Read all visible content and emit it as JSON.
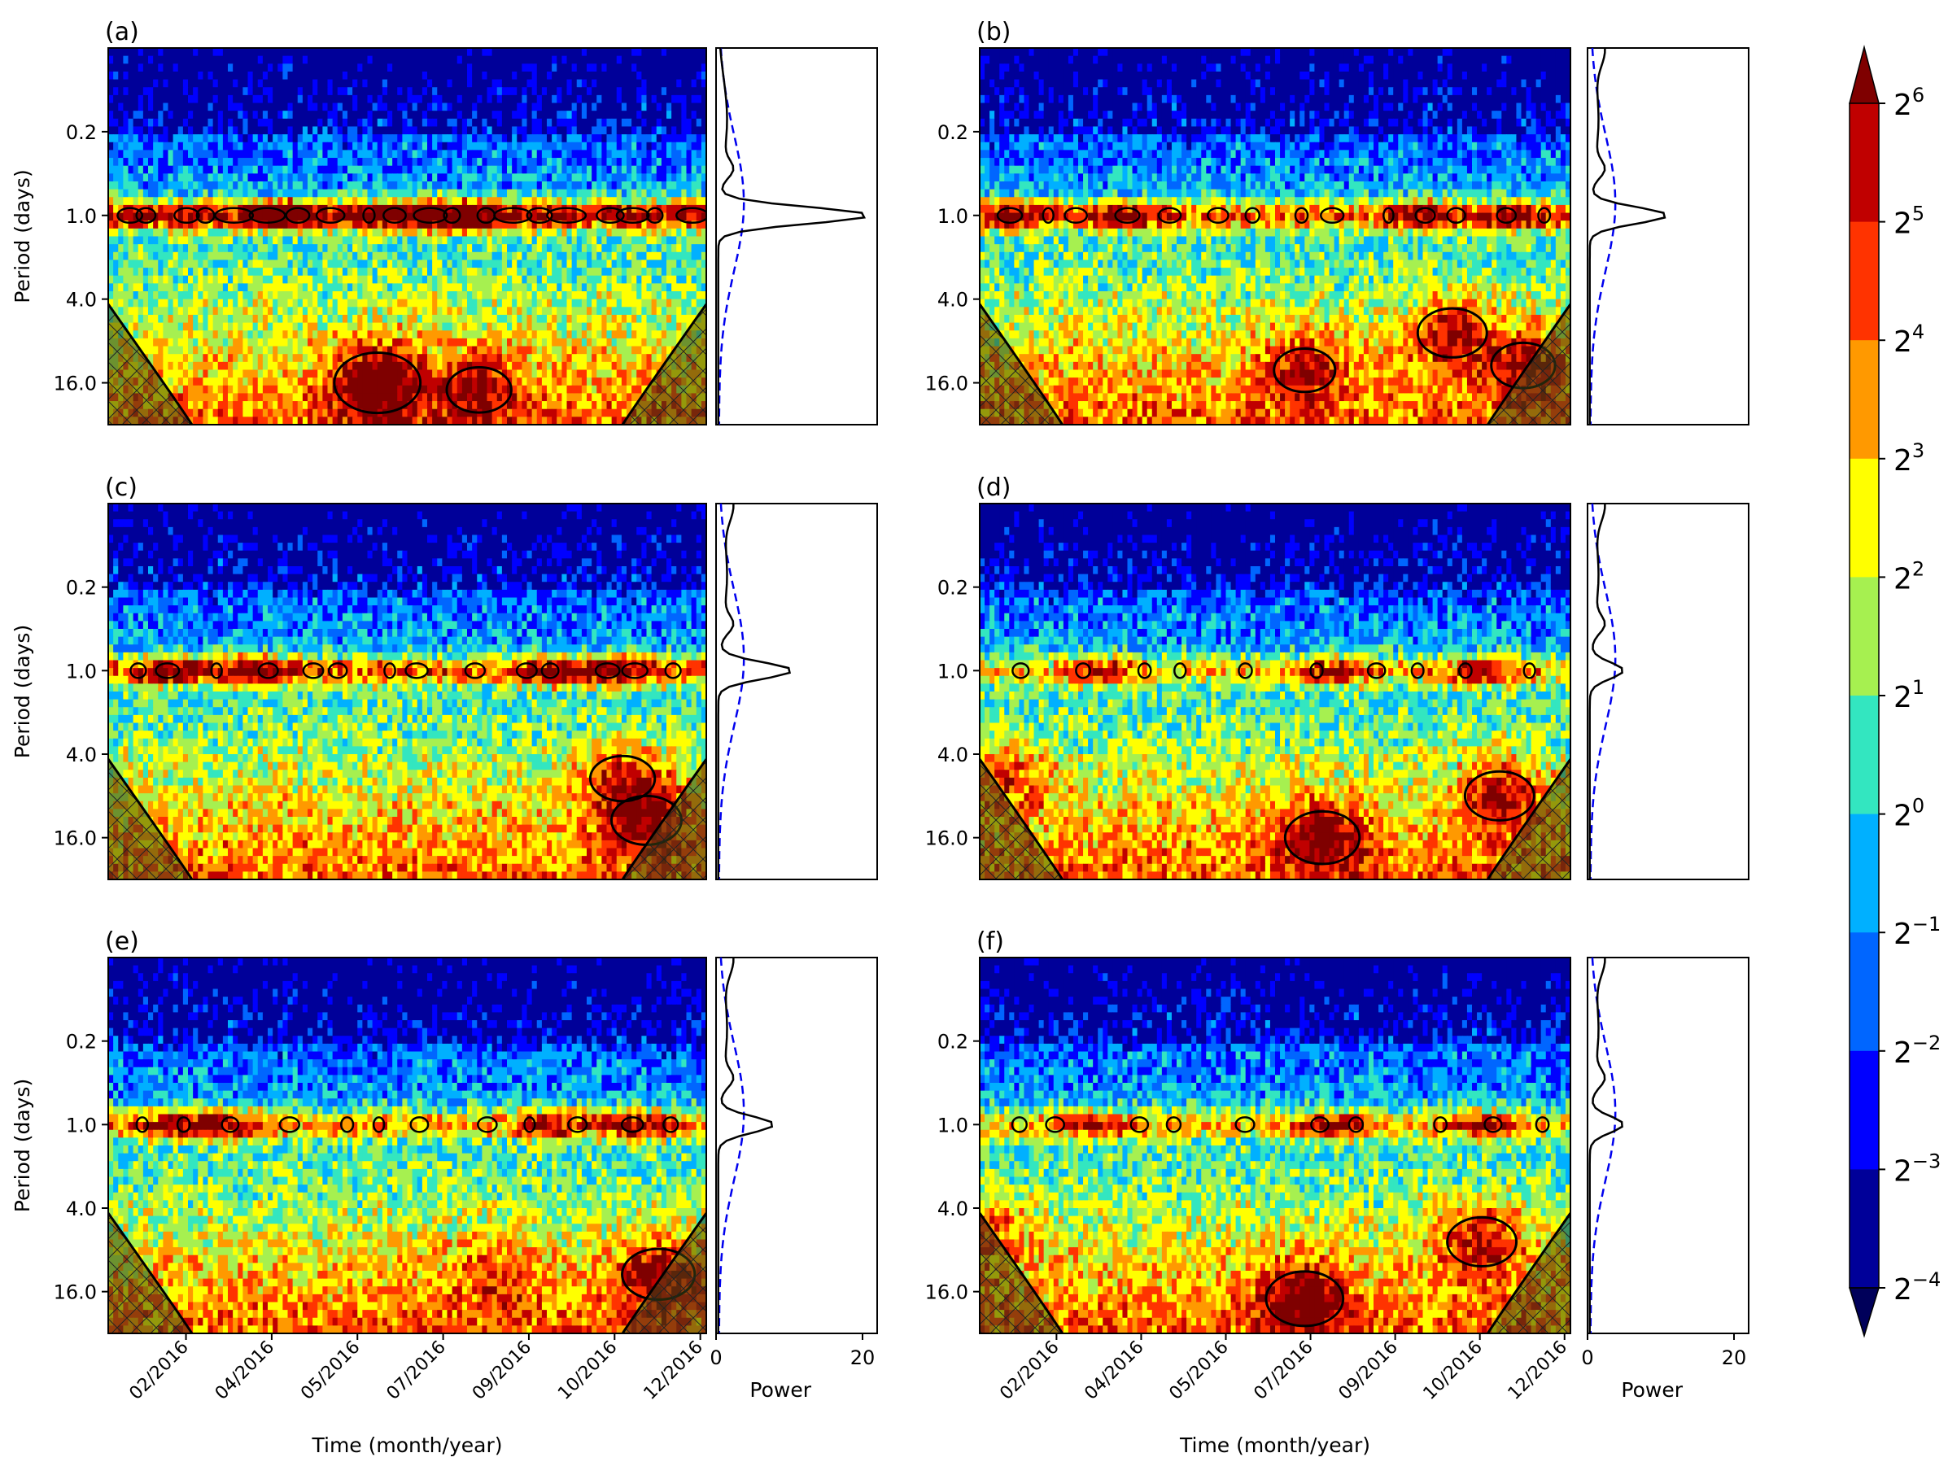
{
  "chart_data": {
    "type": "heatmap",
    "description_kind": "wavelet power spectra with global wavelet spectra",
    "colormap": "jet",
    "colorbar": {
      "levels": [
        {
          "base": "2",
          "exp": "6"
        },
        {
          "base": "2",
          "exp": "5"
        },
        {
          "base": "2",
          "exp": "4"
        },
        {
          "base": "2",
          "exp": "3"
        },
        {
          "base": "2",
          "exp": "2"
        },
        {
          "base": "2",
          "exp": "1"
        },
        {
          "base": "2",
          "exp": "0"
        },
        {
          "base": "2",
          "exp": "−1"
        },
        {
          "base": "2",
          "exp": "−2"
        },
        {
          "base": "2",
          "exp": "−3"
        },
        {
          "base": "2",
          "exp": "−4"
        }
      ],
      "colors": [
        "#7f0000",
        "#c00000",
        "#ff3300",
        "#ff9900",
        "#ffff00",
        "#a6f050",
        "#33e6c0",
        "#00b0ff",
        "#0066ff",
        "#0000ff",
        "#000099"
      ],
      "extend": "both"
    },
    "yaxis": {
      "label": "Period (days)",
      "scale": "log2",
      "ticks": [
        "0.2",
        "1.0",
        "4.0",
        "16.0"
      ],
      "tick_values": [
        0.25,
        1,
        4,
        16
      ],
      "range": [
        0.0625,
        32
      ]
    },
    "xaxis": {
      "label": "Time (month/year)",
      "ticks": [
        "02/2016",
        "04/2016",
        "05/2016",
        "07/2016",
        "09/2016",
        "10/2016",
        "12/2016"
      ]
    },
    "power_axis": {
      "label": "Power",
      "ticks": [
        "0",
        "20"
      ],
      "tick_values": [
        0,
        20
      ],
      "range": [
        0,
        22
      ]
    },
    "panels": [
      {
        "label": "(a)",
        "diurnal_strength": 1.0,
        "global_spectrum_peak": 20.5,
        "band_events": [
          0.5,
          0.3,
          0.6
        ],
        "lowfreq_hotspots": [
          [
            0.45,
            16,
            1.0
          ],
          [
            0.62,
            18,
            0.6
          ]
        ]
      },
      {
        "label": "(b)",
        "diurnal_strength": 0.55,
        "global_spectrum_peak": 10.5,
        "band_events": [
          0.05,
          0.25,
          0.75,
          0.9
        ],
        "lowfreq_hotspots": [
          [
            0.55,
            13,
            0.55
          ],
          [
            0.8,
            7,
            0.7
          ],
          [
            0.92,
            12,
            0.6
          ]
        ]
      },
      {
        "label": "(c)",
        "diurnal_strength": 0.6,
        "global_spectrum_peak": 10.0,
        "band_events": [
          0.1,
          0.25,
          0.75,
          0.85
        ],
        "lowfreq_hotspots": [
          [
            0.9,
            12,
            0.7
          ],
          [
            0.86,
            6,
            0.6
          ]
        ]
      },
      {
        "label": "(d)",
        "diurnal_strength": 0.3,
        "global_spectrum_peak": 4.5,
        "band_events": [
          0.2,
          0.6,
          0.85
        ],
        "lowfreq_hotspots": [
          [
            0.58,
            16,
            0.8
          ],
          [
            0.88,
            8,
            0.7
          ],
          [
            0.05,
            6,
            0.5
          ]
        ]
      },
      {
        "label": "(e)",
        "diurnal_strength": 0.4,
        "global_spectrum_peak": 7.5,
        "band_events": [
          0.1,
          0.2,
          0.75,
          0.88
        ],
        "lowfreq_hotspots": [
          [
            0.92,
            12,
            0.75
          ],
          [
            0.65,
            12,
            0.4
          ]
        ]
      },
      {
        "label": "(f)",
        "diurnal_strength": 0.3,
        "global_spectrum_peak": 4.5,
        "band_events": [
          0.2,
          0.6,
          0.85
        ],
        "lowfreq_hotspots": [
          [
            0.55,
            18,
            0.85
          ],
          [
            0.85,
            7,
            0.7
          ],
          [
            0.02,
            6,
            0.5
          ]
        ]
      }
    ],
    "significance_contour": "black solid",
    "cone_of_influence": "hatched",
    "global_spectrum_line": "black solid",
    "significance_line": "blue dashed"
  }
}
